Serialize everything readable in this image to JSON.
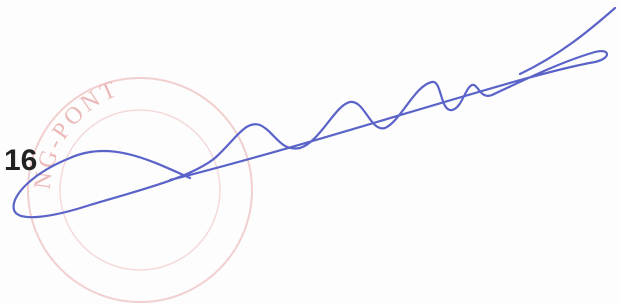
{
  "number": "16",
  "stamp": {
    "text": "NG-PONT"
  }
}
